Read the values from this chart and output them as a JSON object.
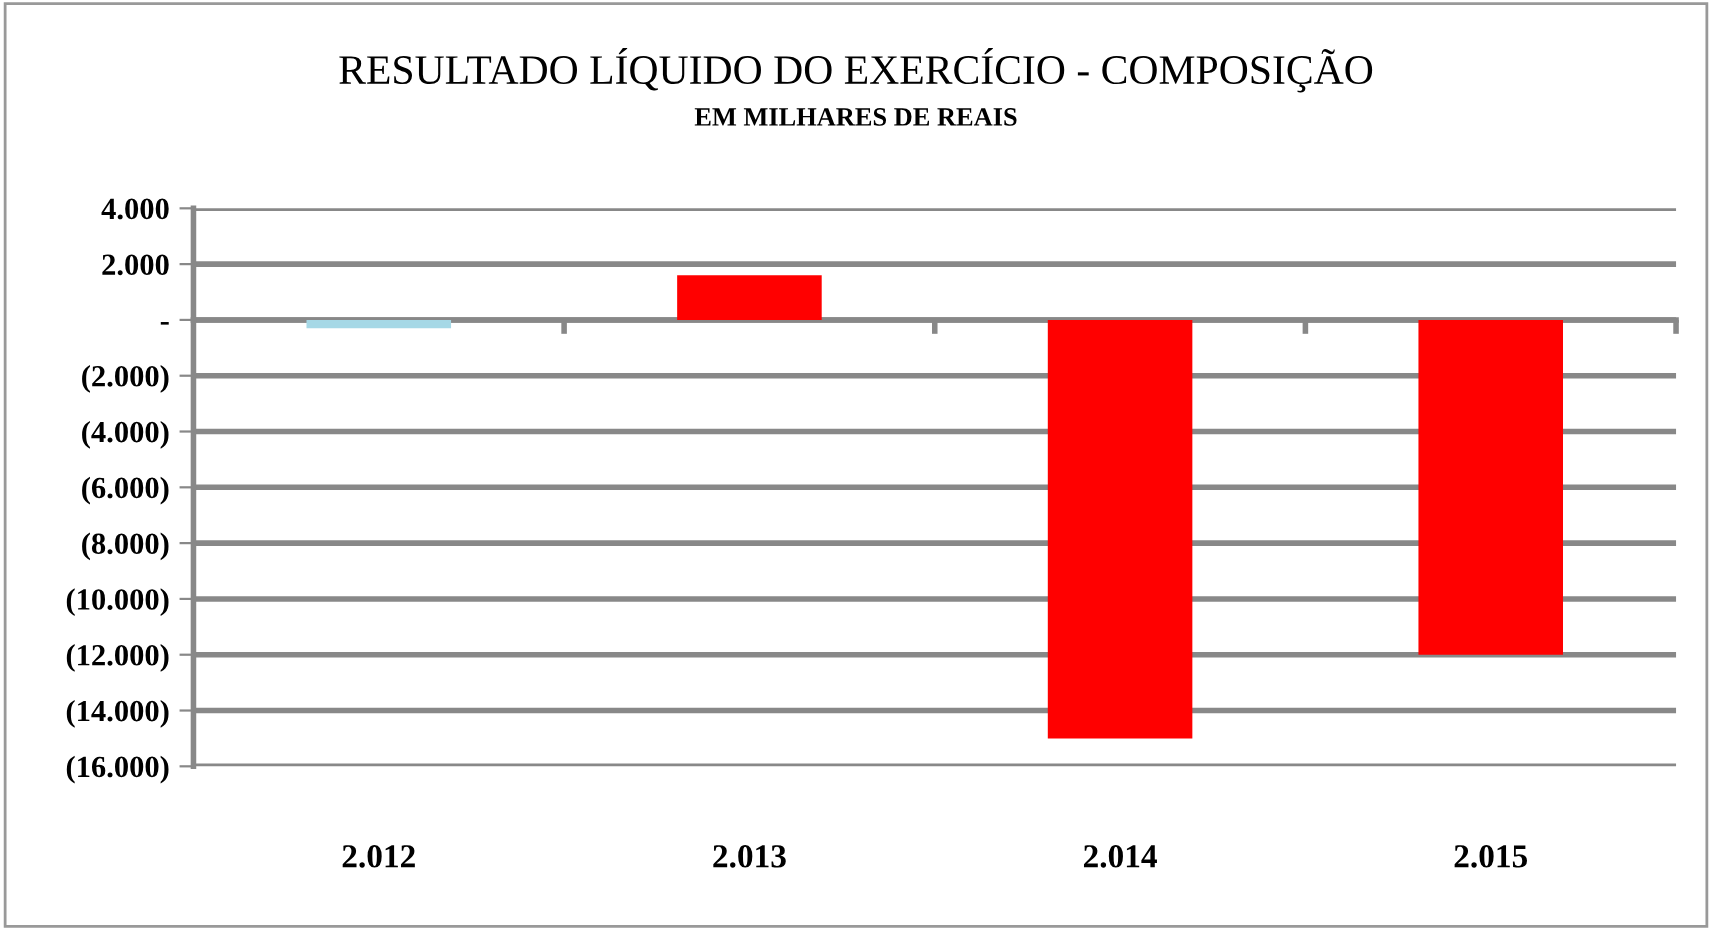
{
  "chart_data": {
    "type": "bar",
    "title": "RESULTADO LÍQUIDO DO EXERCÍCIO - COMPOSIÇÃO",
    "subtitle": "EM MILHARES DE REAIS",
    "categories": [
      "2.012",
      "2.013",
      "2.014",
      "2.015"
    ],
    "values": [
      -300,
      1600,
      -15000,
      -12000
    ],
    "colors": [
      "#a6d8e6",
      "#ff0000",
      "#ff0000",
      "#ff0000"
    ],
    "ylim": [
      -16000,
      4000
    ],
    "yticks": [
      {
        "value": 4000,
        "label": "4.000"
      },
      {
        "value": 2000,
        "label": "2.000"
      },
      {
        "value": 0,
        "label": "-"
      },
      {
        "value": -2000,
        "label": "(2.000)"
      },
      {
        "value": -4000,
        "label": "(4.000)"
      },
      {
        "value": -6000,
        "label": "(6.000)"
      },
      {
        "value": -8000,
        "label": "(8.000)"
      },
      {
        "value": -10000,
        "label": "(10.000)"
      },
      {
        "value": -12000,
        "label": "(12.000)"
      },
      {
        "value": -14000,
        "label": "(14.000)"
      },
      {
        "value": -16000,
        "label": "(16.000)"
      }
    ],
    "grid": "y",
    "legend": false
  }
}
